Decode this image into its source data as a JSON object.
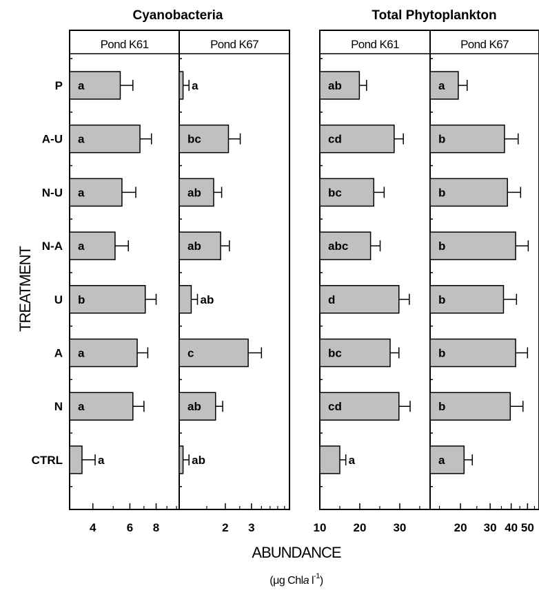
{
  "chart_data": {
    "type": "bar",
    "orientation": "horizontal",
    "group_titles": [
      "Cyanobacteria",
      "Total Phytoplankton"
    ],
    "ylabel": "TREATMENT",
    "xlabel": "ABUNDANCE",
    "units": {
      "pre": "(μg Chl",
      "italic": "a",
      "mid": " l",
      "sup": "-1",
      "post": ")"
    },
    "categories": [
      "P",
      "A-U",
      "N-U",
      "N-A",
      "U",
      "A",
      "N",
      "CTRL"
    ],
    "colors": {
      "bar": "#c0c0c0",
      "edge": "#000000"
    },
    "panels": [
      {
        "group": "Cyanobacteria",
        "title": "Pond K61",
        "scale": "log",
        "xlim": [
          3.1,
          10.3
        ],
        "ticks": [
          4,
          6,
          8
        ],
        "minor_ticks": [
          5,
          7,
          9,
          10
        ],
        "values": [
          5.4,
          6.7,
          5.5,
          5.1,
          7.1,
          6.5,
          6.2,
          3.55
        ],
        "errors": [
          0.8,
          0.9,
          0.9,
          0.8,
          0.9,
          0.8,
          0.8,
          0.55
        ],
        "letters": [
          "a",
          "a",
          "a",
          "a",
          "b",
          "a",
          "a",
          "a"
        ]
      },
      {
        "group": "Cyanobacteria",
        "title": "Pond K67",
        "scale": "log",
        "xlim": [
          0.98,
          5.4
        ],
        "ticks": [
          2,
          3
        ],
        "minor_ticks": [
          1.5,
          2.5,
          3.5,
          4,
          4.5,
          5
        ],
        "values": [
          1.04,
          2.1,
          1.67,
          1.86,
          1.18,
          2.85,
          1.72,
          1.04
        ],
        "errors": [
          0.1,
          0.42,
          0.22,
          0.27,
          0.12,
          0.65,
          0.2,
          0.1
        ],
        "letters": [
          "a",
          "bc",
          "ab",
          "ab",
          "ab",
          "c",
          "ab",
          "ab"
        ]
      },
      {
        "group": "Total Phytoplankton",
        "title": "Pond K61",
        "scale": "linear",
        "xlim": [
          10,
          37.6
        ],
        "ticks": [
          10,
          20,
          30
        ],
        "minor_ticks": [
          15,
          25,
          35
        ],
        "values": [
          19.9,
          28.6,
          23.5,
          22.7,
          29.8,
          27.6,
          29.8,
          15.0
        ],
        "errors": [
          1.8,
          2.3,
          2.6,
          2.4,
          2.6,
          2.2,
          2.8,
          1.5
        ],
        "letters": [
          "ab",
          "cd",
          "bc",
          "abc",
          "d",
          "bc",
          "cd",
          "a"
        ]
      },
      {
        "group": "Total Phytoplankton",
        "title": "Pond K67",
        "scale": "log",
        "xlim": [
          13.2,
          58.5
        ],
        "ticks": [
          20,
          30,
          40,
          50
        ],
        "minor_ticks": [
          15,
          25,
          35,
          45,
          55
        ],
        "values": [
          19.4,
          36.5,
          38.0,
          42.5,
          36.0,
          42.5,
          39.5,
          21.0
        ],
        "errors": [
          2.5,
          7.5,
          7.5,
          8.0,
          7.0,
          7.5,
          7.5,
          2.5
        ],
        "letters": [
          "a",
          "b",
          "b",
          "b",
          "b",
          "b",
          "b",
          "a"
        ]
      }
    ]
  }
}
